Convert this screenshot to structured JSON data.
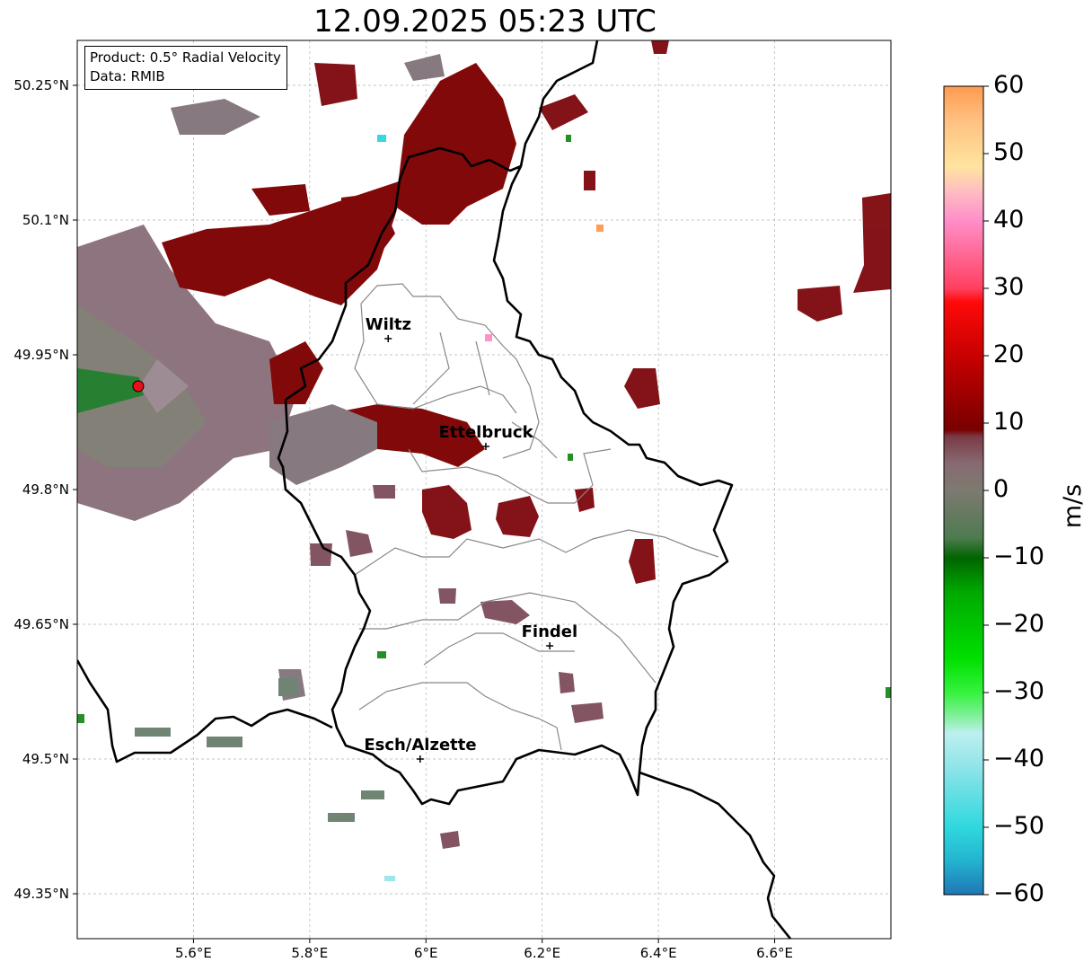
{
  "title": "12.09.2025 05:23 UTC",
  "info": {
    "product": "Product: 0.5° Radial Velocity",
    "source": "Data: RMIB"
  },
  "lat_ticks": [
    {
      "label": "50.25°N",
      "value": 50.25
    },
    {
      "label": "50.1°N",
      "value": 50.1
    },
    {
      "label": "49.95°N",
      "value": 49.95
    },
    {
      "label": "49.8°N",
      "value": 49.8
    },
    {
      "label": "49.65°N",
      "value": 49.65
    },
    {
      "label": "49.5°N",
      "value": 49.5
    },
    {
      "label": "49.35°N",
      "value": 49.35
    }
  ],
  "lon_ticks": [
    {
      "label": "5.6°E",
      "value": 5.6
    },
    {
      "label": "5.8°E",
      "value": 5.8
    },
    {
      "label": "6°E",
      "value": 6.0
    },
    {
      "label": "6.2°E",
      "value": 6.2
    },
    {
      "label": "6.4°E",
      "value": 6.4
    },
    {
      "label": "6.6°E",
      "value": 6.6
    }
  ],
  "extent": {
    "lon_min": 5.4,
    "lon_max": 6.8,
    "lat_min": 49.3,
    "lat_max": 50.3
  },
  "cities": [
    {
      "name": "Wiltz",
      "lon": 5.935,
      "lat": 49.968
    },
    {
      "name": "Ettelbruck",
      "lon": 6.103,
      "lat": 49.848
    },
    {
      "name": "Findel",
      "lon": 6.213,
      "lat": 49.626
    },
    {
      "name": "Esch/Alzette",
      "lon": 5.99,
      "lat": 49.5
    }
  ],
  "radar_site": {
    "lon": 5.505,
    "lat": 49.915,
    "color": "#e8101a"
  },
  "colorbar": {
    "unit": "m/s",
    "min": -60,
    "max": 60,
    "ticks": [
      {
        "label": "60",
        "value": 60
      },
      {
        "label": "50",
        "value": 50
      },
      {
        "label": "40",
        "value": 40
      },
      {
        "label": "30",
        "value": 30
      },
      {
        "label": "20",
        "value": 20
      },
      {
        "label": "10",
        "value": 10
      },
      {
        "label": "0",
        "value": 0
      },
      {
        "label": "−10",
        "value": -10
      },
      {
        "label": "−20",
        "value": -20
      },
      {
        "label": "−30",
        "value": -30
      },
      {
        "label": "−40",
        "value": -40
      },
      {
        "label": "−50",
        "value": -50
      },
      {
        "label": "−60",
        "value": -60
      }
    ],
    "stops": [
      {
        "value": -60,
        "color": "#1f77b4"
      },
      {
        "value": -55,
        "color": "#23b3d0"
      },
      {
        "value": -50,
        "color": "#2fd8de"
      },
      {
        "value": -40,
        "color": "#9ae6ea"
      },
      {
        "value": -36,
        "color": "#bdf0ef"
      },
      {
        "value": -34,
        "color": "#8cf0a8"
      },
      {
        "value": -30,
        "color": "#35f23d"
      },
      {
        "value": -25,
        "color": "#00e000"
      },
      {
        "value": -15,
        "color": "#00a800"
      },
      {
        "value": -10,
        "color": "#006400"
      },
      {
        "value": -7,
        "color": "#4e7b50"
      },
      {
        "value": 0,
        "color": "#7d7a70"
      },
      {
        "value": 4,
        "color": "#876a72"
      },
      {
        "value": 8,
        "color": "#7a3a45"
      },
      {
        "value": 9,
        "color": "#780000"
      },
      {
        "value": 20,
        "color": "#c80000"
      },
      {
        "value": 28,
        "color": "#ff0a0a"
      },
      {
        "value": 30,
        "color": "#ff4060"
      },
      {
        "value": 40,
        "color": "#ff8ec8"
      },
      {
        "value": 44,
        "color": "#ffb8c4"
      },
      {
        "value": 48,
        "color": "#ffe4a0"
      },
      {
        "value": 55,
        "color": "#ffc080"
      },
      {
        "value": 60,
        "color": "#ff9a50"
      }
    ]
  }
}
